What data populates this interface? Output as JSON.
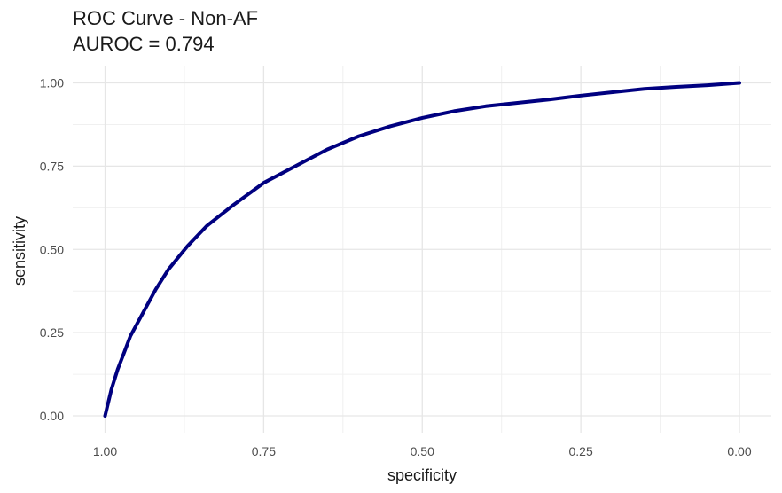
{
  "chart_data": {
    "type": "line",
    "title": "ROC Curve - Non-AF",
    "subtitle": "AUROC = 0.794",
    "xlabel": "specificity",
    "ylabel": "sensitivity",
    "xlim": [
      1.0,
      0.0
    ],
    "ylim": [
      0.0,
      1.0
    ],
    "x_reversed": true,
    "grid": true,
    "x_ticks": [
      "1.00",
      "0.75",
      "0.50",
      "0.25",
      "0.00"
    ],
    "y_ticks": [
      "0.00",
      "0.25",
      "0.50",
      "0.75",
      "1.00"
    ],
    "series": [
      {
        "color": "#000080",
        "specificity": [
          1.0,
          0.99,
          0.98,
          0.97,
          0.96,
          0.94,
          0.92,
          0.9,
          0.87,
          0.84,
          0.8,
          0.75,
          0.7,
          0.65,
          0.6,
          0.55,
          0.5,
          0.45,
          0.4,
          0.35,
          0.3,
          0.25,
          0.2,
          0.15,
          0.1,
          0.05,
          0.0
        ],
        "sensitivity": [
          0.0,
          0.08,
          0.14,
          0.19,
          0.24,
          0.31,
          0.38,
          0.44,
          0.51,
          0.57,
          0.63,
          0.7,
          0.75,
          0.8,
          0.84,
          0.87,
          0.895,
          0.915,
          0.93,
          0.94,
          0.95,
          0.962,
          0.972,
          0.982,
          0.988,
          0.993,
          1.0
        ]
      }
    ]
  }
}
